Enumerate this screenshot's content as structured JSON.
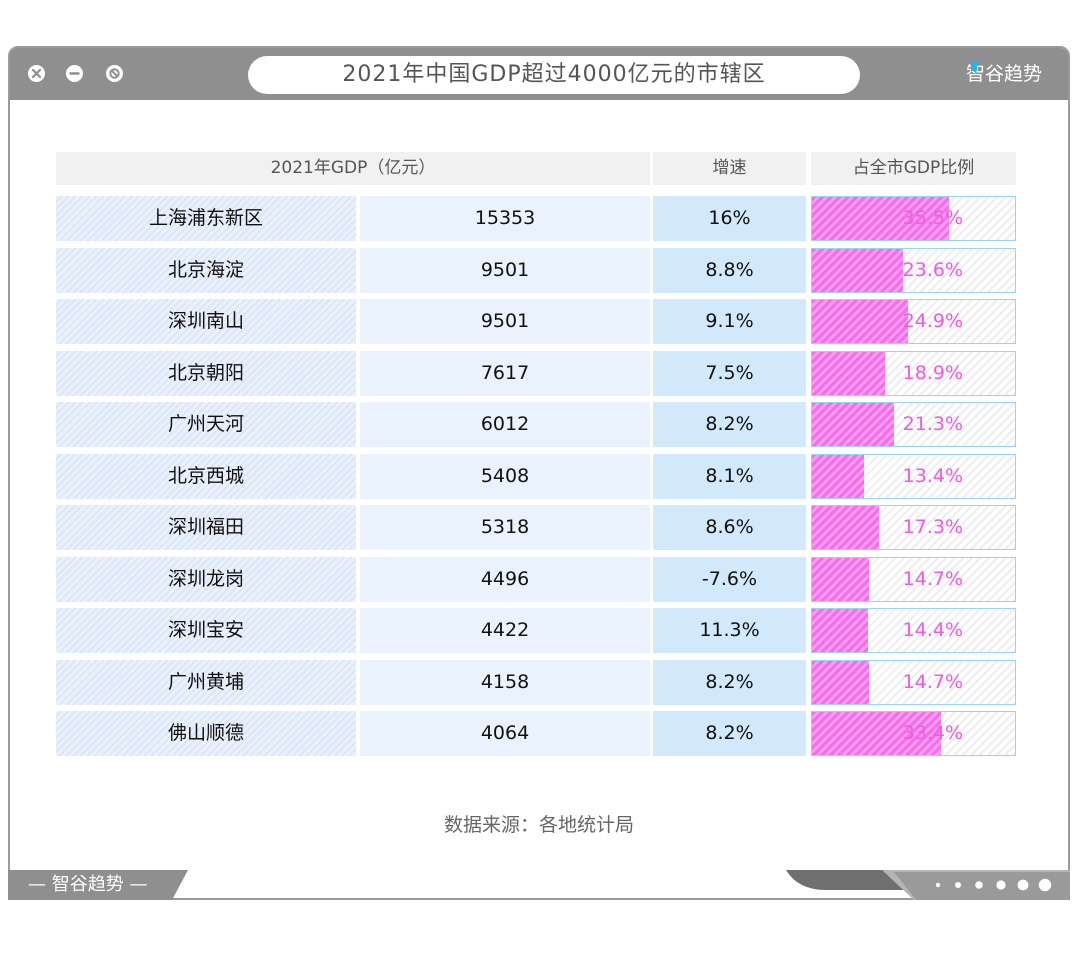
{
  "window": {
    "title": "2021年中国GDP超过4000亿元的市辖区",
    "brand": "智谷趋势",
    "footer_brand": "— 智谷趋势 —"
  },
  "table": {
    "headers": {
      "gdp": "2021年GDP（亿元）",
      "growth": "增速",
      "share": "占全市GDP比例"
    },
    "source": "数据来源：各地统计局"
  },
  "colors": {
    "share_fill": "#f56ee8",
    "share_text": "#f05ae0",
    "growth_bg": "#d2e8fb",
    "frame": "#8f8f8f"
  },
  "chart_data": {
    "type": "table",
    "title": "2021年中国GDP超过4000亿元的市辖区",
    "columns": [
      "2021年GDP（亿元）",
      "增速",
      "占全市GDP比例"
    ],
    "rows": [
      {
        "name": "上海浦东新区",
        "gdp": "15353",
        "growth": "16%",
        "share": "35.5%",
        "share_value": 35.5
      },
      {
        "name": "北京海淀",
        "gdp": "9501",
        "growth": "8.8%",
        "share": "23.6%",
        "share_value": 23.6
      },
      {
        "name": "深圳南山",
        "gdp": "9501",
        "growth": "9.1%",
        "share": "24.9%",
        "share_value": 24.9
      },
      {
        "name": "北京朝阳",
        "gdp": "7617",
        "growth": "7.5%",
        "share": "18.9%",
        "share_value": 18.9
      },
      {
        "name": "广州天河",
        "gdp": "6012",
        "growth": "8.2%",
        "share": "21.3%",
        "share_value": 21.3
      },
      {
        "name": "北京西城",
        "gdp": "5408",
        "growth": "8.1%",
        "share": "13.4%",
        "share_value": 13.4
      },
      {
        "name": "深圳福田",
        "gdp": "5318",
        "growth": "8.6%",
        "share": "17.3%",
        "share_value": 17.3
      },
      {
        "name": "深圳龙岗",
        "gdp": "4496",
        "growth": "-7.6%",
        "share": "14.7%",
        "share_value": 14.7
      },
      {
        "name": "深圳宝安",
        "gdp": "4422",
        "growth": "11.3%",
        "share": "14.4%",
        "share_value": 14.4
      },
      {
        "name": "广州黄埔",
        "gdp": "4158",
        "growth": "8.2%",
        "share": "14.7%",
        "share_value": 14.7
      },
      {
        "name": "佛山顺德",
        "gdp": "4064",
        "growth": "8.2%",
        "share": "33.4%",
        "share_value": 33.4
      }
    ]
  }
}
